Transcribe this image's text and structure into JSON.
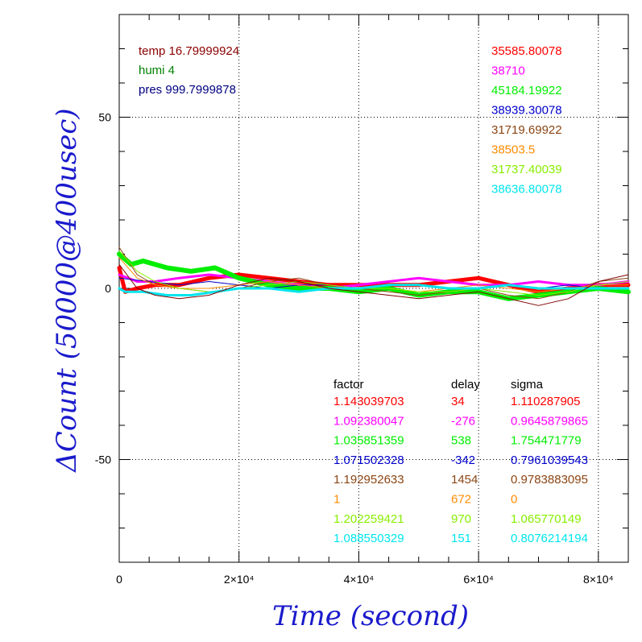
{
  "chart_data": {
    "type": "line",
    "xlabel": "Time (second)",
    "ylabel": "ΔCount (50000@400usec)",
    "xlim": [
      0,
      85000
    ],
    "ylim": [
      -80,
      80
    ],
    "x_ticks": [
      {
        "value": 0,
        "label": "0"
      },
      {
        "value": 20000,
        "label": "2×10⁴"
      },
      {
        "value": 40000,
        "label": "4×10⁴"
      },
      {
        "value": 60000,
        "label": "6×10⁴"
      },
      {
        "value": 80000,
        "label": "8×10⁴"
      }
    ],
    "y_ticks": [
      {
        "value": 50,
        "label": "50"
      },
      {
        "value": 0,
        "label": "0"
      },
      {
        "value": -50,
        "label": "-50"
      }
    ],
    "grid": true,
    "env": [
      {
        "text": "temp 16.79999924",
        "color": "#8b0000"
      },
      {
        "text": "humi 4",
        "color": "#008000"
      },
      {
        "text": "pres 999.7999878",
        "color": "#000080"
      }
    ],
    "table_headers": {
      "factor": "factor",
      "delay": "delay",
      "sigma": "sigma"
    },
    "series": [
      {
        "value": "35585.80078",
        "factor": "1.143039703",
        "delay": "34",
        "sigma": "1.110287905",
        "color": "#ff0000",
        "width": 5,
        "x": [
          0,
          1000,
          3000,
          6000,
          10000,
          15000,
          20000,
          25000,
          30000,
          35000,
          40000,
          45000,
          50000,
          55000,
          60000,
          65000,
          70000,
          75000,
          80000,
          85000
        ],
        "y": [
          6,
          -1,
          0,
          1,
          1,
          3,
          4,
          3,
          2,
          1,
          1,
          1,
          1,
          2,
          3,
          1,
          -1,
          0,
          1,
          1
        ]
      },
      {
        "value": "38710",
        "factor": "1.092380047",
        "delay": "-276",
        "sigma": "0.9645879865",
        "color": "#ff00ff",
        "width": 3,
        "x": [
          0,
          3000,
          6000,
          10000,
          15000,
          20000,
          25000,
          30000,
          35000,
          40000,
          45000,
          50000,
          55000,
          60000,
          65000,
          70000,
          75000,
          80000,
          85000
        ],
        "y": [
          4,
          2,
          2,
          3,
          4,
          3,
          2,
          1,
          0,
          1,
          2,
          3,
          2,
          1,
          1,
          2,
          1,
          1,
          2
        ]
      },
      {
        "value": "45184.19922",
        "factor": "1.035851359",
        "delay": "538",
        "sigma": "1.754471779",
        "color": "#00ee00",
        "width": 6,
        "x": [
          0,
          2000,
          4000,
          8000,
          12000,
          16000,
          20000,
          25000,
          30000,
          35000,
          40000,
          45000,
          50000,
          55000,
          60000,
          65000,
          70000,
          75000,
          80000,
          85000
        ],
        "y": [
          10,
          7,
          8,
          6,
          5,
          6,
          3,
          1,
          0,
          0,
          -1,
          0,
          -2,
          -1,
          -1,
          -3,
          -2,
          -1,
          0,
          -1
        ]
      },
      {
        "value": "38939.30078",
        "factor": "1.071502328",
        "delay": "-342",
        "sigma": "0.7961039543",
        "color": "#0000cc",
        "width": 1,
        "x": [
          0,
          5000,
          10000,
          15000,
          20000,
          25000,
          30000,
          35000,
          40000,
          45000,
          50000,
          55000,
          60000,
          65000,
          70000,
          75000,
          80000,
          85000
        ],
        "y": [
          3,
          2,
          1,
          2,
          1,
          0,
          1,
          1,
          0,
          1,
          1,
          0,
          0,
          1,
          0,
          1,
          0,
          0
        ]
      },
      {
        "value": "31719.69922",
        "factor": "1.192952633",
        "delay": "1454",
        "sigma": "0.9783883095",
        "color": "#8b4513",
        "width": 1,
        "x": [
          0,
          3000,
          6000,
          10000,
          15000,
          20000,
          25000,
          30000,
          35000,
          40000,
          45000,
          50000,
          55000,
          60000,
          65000,
          70000,
          75000,
          80000,
          85000
        ],
        "y": [
          12,
          4,
          1,
          0,
          -1,
          0,
          2,
          3,
          1,
          0,
          -1,
          -2,
          -1,
          0,
          -2,
          -3,
          -1,
          2,
          3
        ]
      },
      {
        "value": "38503.5",
        "factor": "1",
        "delay": "672",
        "sigma": "0",
        "color": "#ff8c00",
        "width": 1,
        "x": [
          0,
          3000,
          6000,
          10000,
          15000,
          20000,
          25000,
          30000,
          35000,
          40000,
          45000,
          50000,
          55000,
          60000,
          65000,
          70000,
          75000,
          80000,
          85000
        ],
        "y": [
          9,
          3,
          1,
          0,
          0,
          1,
          2,
          1,
          0,
          0,
          0,
          -1,
          0,
          1,
          0,
          -1,
          0,
          1,
          1
        ]
      },
      {
        "value": "31737.40039",
        "factor": "1.202259421",
        "delay": "970",
        "sigma": "1.065770149",
        "color": "#88ee00",
        "width": 1,
        "x": [
          0,
          3000,
          6000,
          10000,
          15000,
          20000,
          25000,
          30000,
          35000,
          40000,
          45000,
          50000,
          55000,
          60000,
          65000,
          70000,
          75000,
          80000,
          85000
        ],
        "y": [
          11,
          5,
          2,
          0,
          -1,
          0,
          1,
          2,
          1,
          0,
          0,
          -1,
          -1,
          0,
          -1,
          -2,
          -1,
          1,
          2
        ]
      },
      {
        "value": "38636.80078",
        "factor": "1.088550329",
        "delay": "151",
        "sigma": "0.8076214194",
        "color": "#00e5ee",
        "width": 3,
        "x": [
          0,
          1000,
          4000,
          8000,
          12000,
          16000,
          20000,
          25000,
          30000,
          35000,
          40000,
          45000,
          50000,
          55000,
          60000,
          65000,
          70000,
          75000,
          80000,
          85000
        ],
        "y": [
          0,
          -1,
          -1,
          -2,
          -2,
          -1,
          0,
          0,
          -1,
          0,
          0,
          1,
          1,
          0,
          0,
          1,
          0,
          0,
          0,
          0
        ]
      },
      {
        "value": "",
        "color": "#800000",
        "width": 1,
        "x": [
          0,
          3000,
          6000,
          10000,
          15000,
          20000,
          25000,
          30000,
          35000,
          40000,
          45000,
          50000,
          55000,
          60000,
          65000,
          70000,
          75000,
          80000,
          85000
        ],
        "y": [
          7,
          0,
          -2,
          -3,
          -2,
          1,
          3,
          2,
          0,
          -1,
          -2,
          -3,
          -2,
          -1,
          -3,
          -5,
          -3,
          2,
          4
        ]
      }
    ]
  }
}
